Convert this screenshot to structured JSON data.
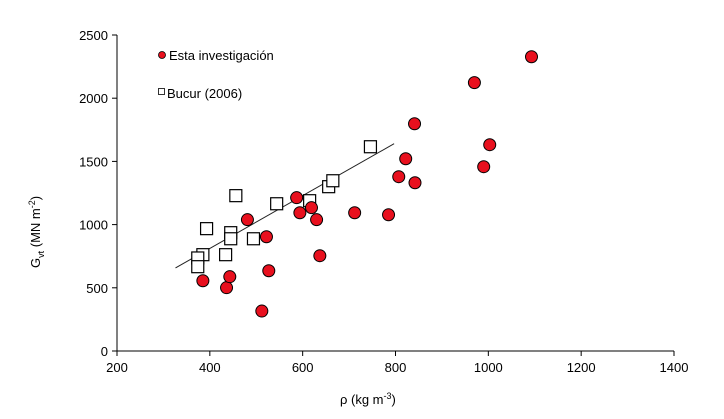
{
  "chart_data": {
    "type": "scatter",
    "xlabel": "ρ  (kg m",
    "xlabel_sup": "-3",
    "xlabel_end": ")",
    "ylabel_main": "G",
    "ylabel_sub": "vt",
    "ylabel_rest": "  (MN m",
    "ylabel_sup": "-2",
    "ylabel_end": ")",
    "xlim": [
      200,
      1400
    ],
    "ylim": [
      0,
      2500
    ],
    "xticks": [
      200,
      400,
      600,
      800,
      1000,
      1200,
      1400
    ],
    "yticks": [
      0,
      500,
      1000,
      1500,
      2000,
      2500
    ],
    "grid": false,
    "legend_position": "top-left",
    "series": [
      {
        "name": "Esta investigación",
        "marker": "circle",
        "color": "#e8101e",
        "points": [
          [
            385,
            556
          ],
          [
            436,
            501
          ],
          [
            443,
            588
          ],
          [
            481,
            1039
          ],
          [
            522,
            904
          ],
          [
            527,
            635
          ],
          [
            512,
            316
          ],
          [
            587,
            1213
          ],
          [
            594,
            1094
          ],
          [
            619,
            1134
          ],
          [
            630,
            1039
          ],
          [
            637,
            754
          ],
          [
            712,
            1094
          ],
          [
            785,
            1078
          ],
          [
            807,
            1379
          ],
          [
            822,
            1521
          ],
          [
            842,
            1331
          ],
          [
            1093,
            2328
          ],
          [
            970,
            2123
          ],
          [
            841,
            1798
          ],
          [
            1003,
            1632
          ],
          [
            990,
            1458
          ]
        ]
      },
      {
        "name": "Bucur (2006)",
        "marker": "square",
        "color": "#ffffff",
        "points": [
          [
            456,
            1229
          ],
          [
            393,
            968
          ],
          [
            445,
            936
          ],
          [
            445,
            888
          ],
          [
            494,
            888
          ],
          [
            544,
            1165
          ],
          [
            385,
            762
          ],
          [
            374,
            736
          ],
          [
            374,
            667
          ],
          [
            434,
            762
          ],
          [
            615,
            1189
          ],
          [
            656,
            1300
          ],
          [
            665,
            1347
          ],
          [
            746,
            1616
          ]
        ]
      }
    ],
    "trendline": [
      [
        326,
        657
      ],
      [
        797,
        1640
      ]
    ]
  }
}
